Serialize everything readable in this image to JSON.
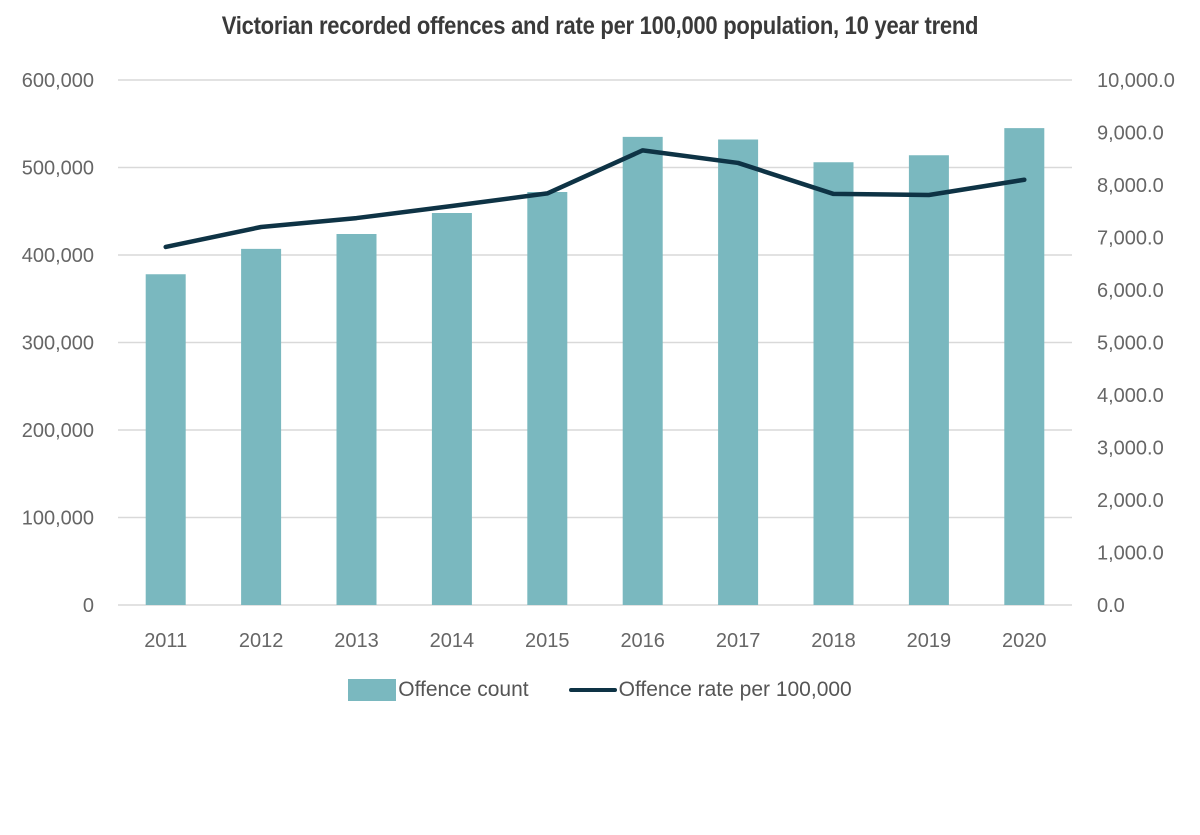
{
  "chart_data": {
    "type": "bar",
    "title": "Victorian recorded offences and rate per 100,000 population, 10 year trend",
    "xlabel": "",
    "ylabel": "",
    "y2label": "",
    "categories": [
      "2011",
      "2012",
      "2013",
      "2014",
      "2015",
      "2016",
      "2017",
      "2018",
      "2019",
      "2020"
    ],
    "series": [
      {
        "name": "Offence count",
        "type": "bar",
        "axis": "left",
        "color": "#7ab8bf",
        "values": [
          378000,
          407000,
          424000,
          448000,
          472000,
          535000,
          532000,
          506000,
          514000,
          545000
        ]
      },
      {
        "name": "Offence rate per 100,000",
        "type": "line",
        "axis": "right",
        "color": "#0e3345",
        "values": [
          6820,
          7200,
          7370,
          7600,
          7840,
          8660,
          8420,
          7830,
          7810,
          8100
        ]
      }
    ],
    "ylim": [
      0,
      600000
    ],
    "y2lim": [
      0,
      10000
    ],
    "yticks": [
      "0",
      "100,000",
      "200,000",
      "300,000",
      "400,000",
      "500,000",
      "600,000"
    ],
    "yticks_values": [
      0,
      100000,
      200000,
      300000,
      400000,
      500000,
      600000
    ],
    "y2ticks": [
      "0.0",
      "1,000.0",
      "2,000.0",
      "3,000.0",
      "4,000.0",
      "5,000.0",
      "6,000.0",
      "7,000.0",
      "8,000.0",
      "9,000.0",
      "10,000.0"
    ],
    "y2ticks_values": [
      0,
      1000,
      2000,
      3000,
      4000,
      5000,
      6000,
      7000,
      8000,
      9000,
      10000
    ],
    "grid": true,
    "legend": "bottom"
  }
}
